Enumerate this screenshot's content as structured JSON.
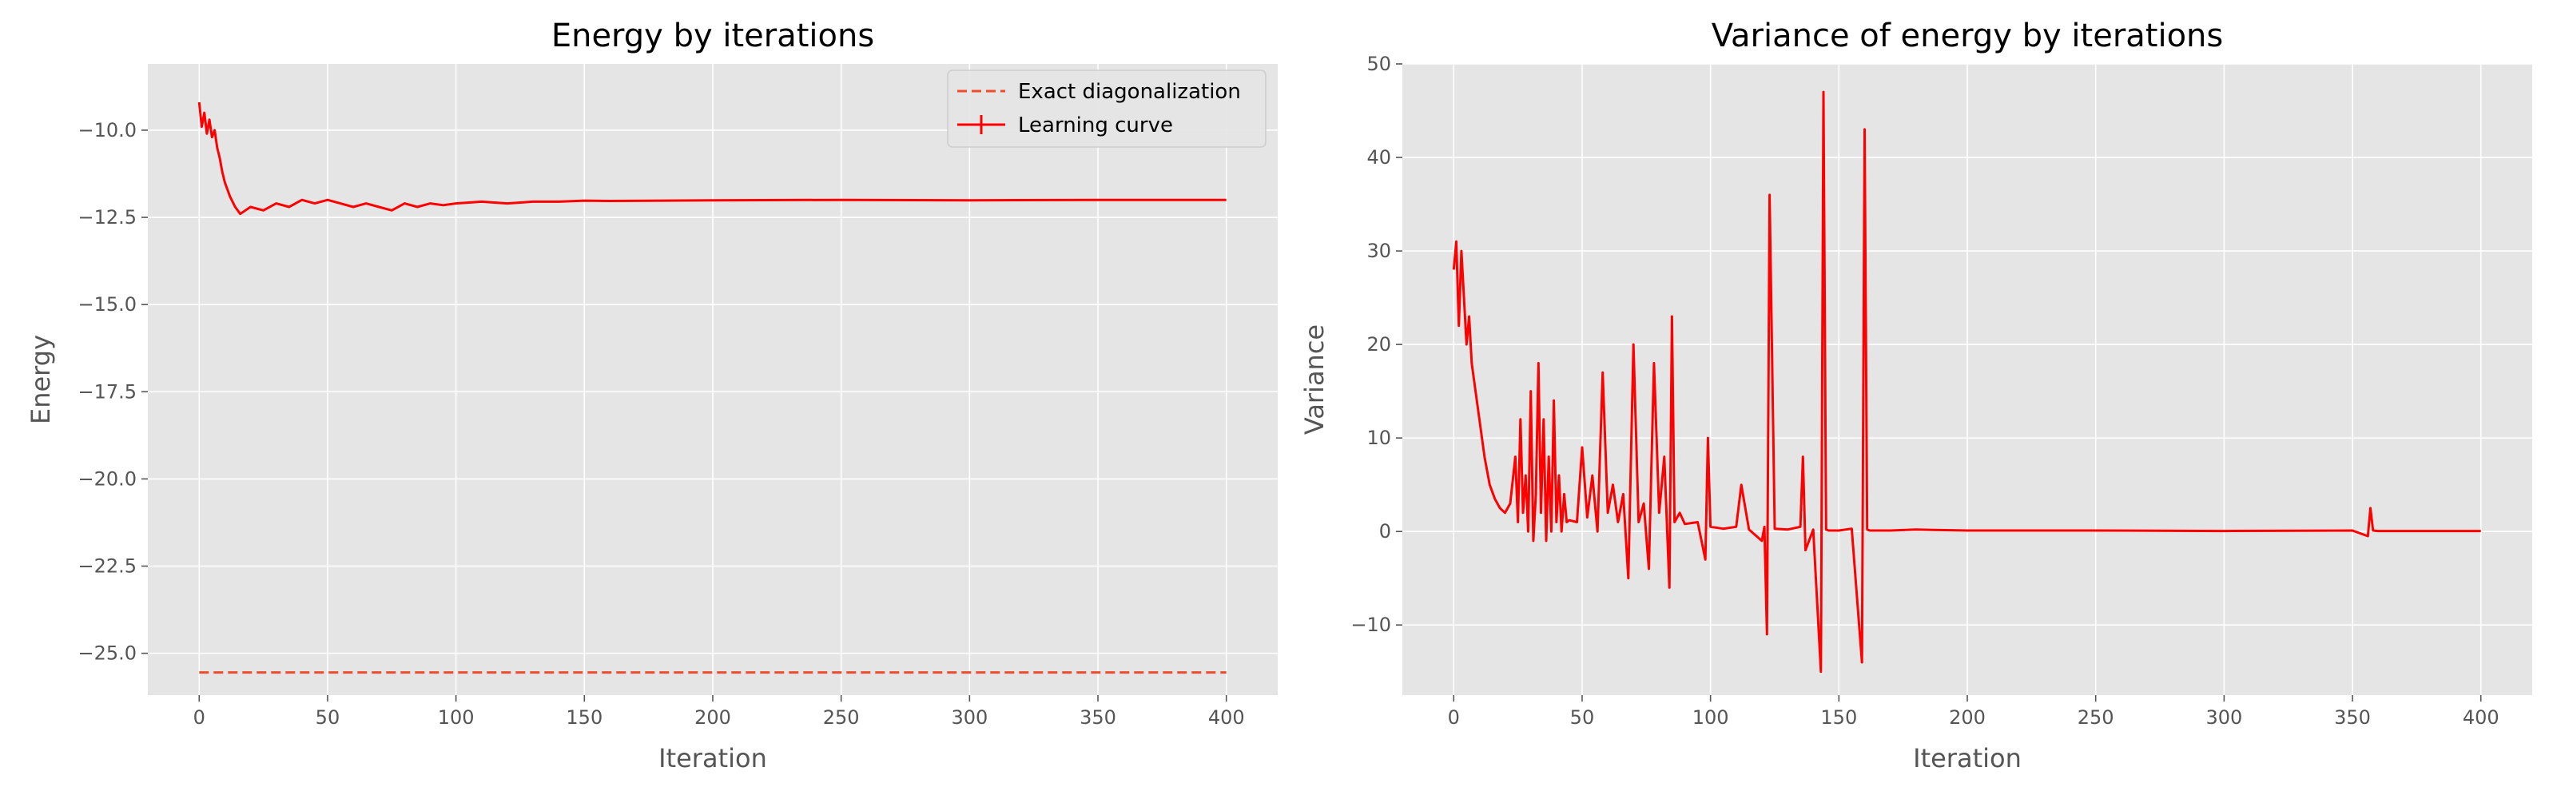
{
  "chart_data": [
    {
      "type": "line",
      "title": "Energy by iterations",
      "xlabel": "Iteration",
      "ylabel": "Energy",
      "xlim": [
        -20,
        420
      ],
      "ylim": [
        -26.2,
        -8.1
      ],
      "xticks": [
        0,
        50,
        100,
        150,
        200,
        250,
        300,
        350,
        400
      ],
      "yticks": [
        -25.0,
        -22.5,
        -20.0,
        -17.5,
        -15.0,
        -12.5,
        -10.0
      ],
      "ytick_labels": [
        "−25.0",
        "−22.5",
        "−20.0",
        "−17.5",
        "−15.0",
        "−12.5",
        "−10.0"
      ],
      "grid": true,
      "legend": "top-right",
      "series": [
        {
          "name": "Exact diagonalization",
          "style": "dashed",
          "color": "#ee4c2c",
          "x": [
            0,
            400
          ],
          "y": [
            -25.55,
            -25.55
          ]
        },
        {
          "name": "Learning curve",
          "style": "solid-errorbar",
          "color": "#ff0000",
          "x": [
            0,
            1,
            2,
            3,
            4,
            5,
            6,
            7,
            8,
            9,
            10,
            12,
            14,
            16,
            18,
            20,
            25,
            30,
            35,
            40,
            45,
            50,
            55,
            60,
            65,
            70,
            75,
            80,
            85,
            90,
            95,
            100,
            110,
            120,
            130,
            140,
            150,
            160,
            180,
            200,
            250,
            300,
            350,
            400
          ],
          "y": [
            -9.2,
            -9.9,
            -9.5,
            -10.1,
            -9.7,
            -10.2,
            -10.0,
            -10.5,
            -10.8,
            -11.2,
            -11.5,
            -11.9,
            -12.2,
            -12.4,
            -12.3,
            -12.2,
            -12.3,
            -12.1,
            -12.2,
            -12.0,
            -12.1,
            -12.0,
            -12.1,
            -12.2,
            -12.1,
            -12.2,
            -12.3,
            -12.1,
            -12.2,
            -12.1,
            -12.15,
            -12.1,
            -12.05,
            -12.1,
            -12.05,
            -12.05,
            -12.02,
            -12.03,
            -12.02,
            -12.01,
            -12.0,
            -12.01,
            -12.0,
            -12.0
          ]
        }
      ]
    },
    {
      "type": "line",
      "title": "Variance of energy by iterations",
      "xlabel": "Iteration",
      "ylabel": "Variance",
      "xlim": [
        -20,
        420
      ],
      "ylim": [
        -17.5,
        50
      ],
      "xticks": [
        0,
        50,
        100,
        150,
        200,
        250,
        300,
        350,
        400
      ],
      "yticks": [
        -10,
        0,
        10,
        20,
        30,
        40,
        50
      ],
      "ytick_labels": [
        "−10",
        "0",
        "10",
        "20",
        "30",
        "40",
        "50"
      ],
      "grid": true,
      "series": [
        {
          "color": "#ff0000",
          "x": [
            0,
            1,
            2,
            3,
            4,
            5,
            6,
            7,
            8,
            10,
            12,
            14,
            16,
            18,
            20,
            22,
            24,
            25,
            26,
            27,
            28,
            29,
            30,
            31,
            32,
            33,
            34,
            35,
            36,
            37,
            38,
            39,
            40,
            41,
            42,
            43,
            44,
            45,
            48,
            50,
            52,
            54,
            56,
            58,
            60,
            62,
            64,
            66,
            68,
            70,
            72,
            74,
            76,
            78,
            80,
            82,
            84,
            85,
            86,
            88,
            90,
            95,
            98,
            99,
            100,
            105,
            110,
            112,
            115,
            120,
            121,
            122,
            123,
            125,
            130,
            135,
            136,
            137,
            140,
            143,
            144,
            145,
            146,
            150,
            155,
            159,
            160,
            161,
            162,
            170,
            180,
            200,
            250,
            300,
            350,
            356,
            357,
            358,
            360,
            400
          ],
          "y": [
            28,
            31,
            22,
            30,
            25,
            20,
            23,
            18,
            16,
            12,
            8,
            5,
            3.5,
            2.5,
            2,
            3,
            8,
            1,
            12,
            2,
            6,
            0,
            15,
            -1,
            4,
            18,
            2,
            12,
            -1,
            8,
            0,
            14,
            1,
            6,
            0,
            4,
            1,
            1.2,
            1,
            9,
            1.5,
            6,
            0,
            17,
            2,
            5,
            1,
            4,
            -5,
            20,
            1,
            3,
            -4,
            18,
            2,
            8,
            -6,
            23,
            1,
            2,
            0.8,
            1,
            -3,
            10,
            0.5,
            0.3,
            0.5,
            5,
            0.2,
            -1,
            0.5,
            -11,
            36,
            0.3,
            0.2,
            0.5,
            8,
            -2,
            0.2,
            -15,
            47,
            0.2,
            0.1,
            0.1,
            0.3,
            -14,
            43,
            0.2,
            0.1,
            0.1,
            0.2,
            0.1,
            0.1,
            0.05,
            0.1,
            -0.5,
            2.5,
            0.1,
            0.05,
            0.05
          ]
        }
      ]
    }
  ]
}
